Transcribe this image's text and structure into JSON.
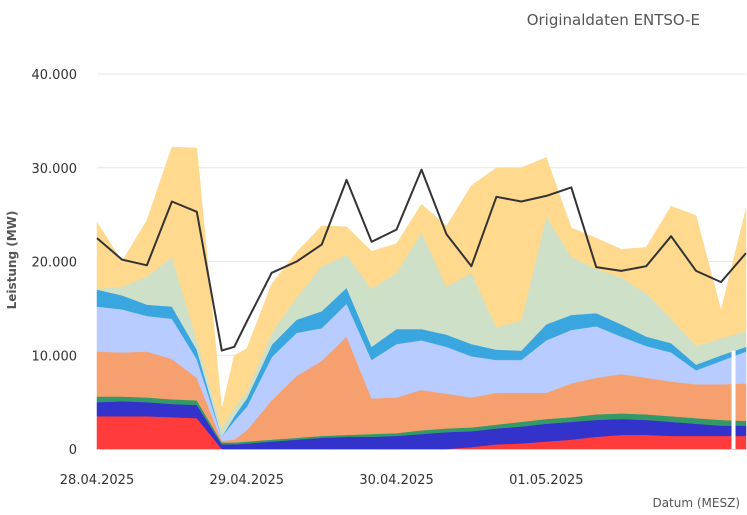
{
  "chart_data": {
    "type": "area",
    "title": "Originaldaten ENTSO-E",
    "ylabel": "Leistung (MW)",
    "xlabel": "Datum (MESZ)",
    "ylim": [
      0,
      40000
    ],
    "xlim": [
      0,
      104
    ],
    "y_ticks": [
      {
        "value": 0,
        "label": "0"
      },
      {
        "value": 10000,
        "label": "10.000"
      },
      {
        "value": 20000,
        "label": "20.000"
      },
      {
        "value": 30000,
        "label": "30.000"
      },
      {
        "value": 40000,
        "label": "40.000"
      }
    ],
    "x_ticks": [
      {
        "value": 0,
        "label": "28.04.2025"
      },
      {
        "value": 24,
        "label": "29.04.2025"
      },
      {
        "value": 48,
        "label": "30.04.2025"
      },
      {
        "value": 72,
        "label": "01.05.2025"
      }
    ],
    "grid": true,
    "x": [
      0,
      4,
      8,
      12,
      16,
      20,
      22,
      24,
      28,
      32,
      36,
      40,
      44,
      48,
      52,
      56,
      60,
      64,
      68,
      72,
      76,
      80,
      84,
      88,
      92,
      96,
      100,
      104
    ],
    "stacked_series": [
      {
        "color": "#ff3b3b",
        "values": [
          3500,
          3500,
          3500,
          3400,
          3300,
          0,
          0,
          0,
          0,
          0,
          0,
          0,
          0,
          0,
          0,
          0,
          200,
          500,
          600,
          800,
          1000,
          1300,
          1500,
          1500,
          1400,
          1400,
          1400,
          1400
        ]
      },
      {
        "color": "#3333cc",
        "values": [
          1500,
          1600,
          1500,
          1400,
          1400,
          500,
          500,
          600,
          800,
          1000,
          1200,
          1300,
          1300,
          1400,
          1600,
          1800,
          1700,
          1700,
          1800,
          1900,
          1900,
          1800,
          1700,
          1600,
          1500,
          1300,
          1100,
          1100
        ]
      },
      {
        "color": "#339966",
        "values": [
          600,
          500,
          500,
          500,
          500,
          200,
          200,
          200,
          200,
          200,
          200,
          200,
          300,
          300,
          400,
          400,
          400,
          400,
          500,
          500,
          500,
          600,
          600,
          600,
          600,
          600,
          600,
          500
        ]
      },
      {
        "color": "#f5a06e",
        "values": [
          4800,
          4700,
          4900,
          4300,
          2400,
          200,
          300,
          1200,
          4200,
          6600,
          8000,
          10500,
          3800,
          3800,
          4300,
          3700,
          3200,
          3400,
          3100,
          2800,
          3600,
          3900,
          4200,
          3900,
          3700,
          3600,
          3800,
          4000
        ]
      },
      {
        "color": "#b8ccff",
        "values": [
          4800,
          4600,
          3800,
          4300,
          2000,
          400,
          2000,
          2500,
          4600,
          4600,
          3500,
          3500,
          4100,
          5700,
          5300,
          5000,
          4400,
          3500,
          3500,
          5600,
          5700,
          5500,
          4000,
          3400,
          3100,
          1500,
          2500,
          3400
        ]
      },
      {
        "color": "#3aa6e0",
        "values": [
          1800,
          1500,
          1200,
          1300,
          1000,
          0,
          500,
          900,
          1300,
          1400,
          1800,
          1700,
          1400,
          1600,
          1200,
          1300,
          1300,
          1100,
          1000,
          1700,
          1600,
          1400,
          1300,
          1000,
          1000,
          600,
          600,
          500
        ]
      },
      {
        "color": "#cfe0c8",
        "values": [
          100,
          900,
          3000,
          5300,
          1000,
          900,
          900,
          700,
          1300,
          2400,
          4800,
          3500,
          6200,
          6000,
          10300,
          5100,
          7600,
          2400,
          3200,
          11500,
          6200,
          4700,
          5000,
          4600,
          2600,
          2000,
          1800,
          1700
        ]
      },
      {
        "color": "#fed98e",
        "values": [
          7100,
          2700,
          6000,
          11700,
          20500,
          2000,
          5600,
          4600,
          5200,
          4800,
          4300,
          3000,
          4000,
          3100,
          3000,
          6500,
          9300,
          17000,
          16300,
          6300,
          3100,
          3300,
          3000,
          4900,
          12000,
          13900,
          3000,
          13000
        ]
      }
    ],
    "line_series": {
      "color": "#333333",
      "values": [
        22500,
        20200,
        19600,
        26400,
        25300,
        10500,
        10900,
        13600,
        18800,
        20000,
        21800,
        28700,
        22100,
        23400,
        29800,
        22900,
        19500,
        26900,
        26400,
        27000,
        27900,
        19400,
        19000,
        19500,
        22700,
        19000,
        17800,
        20900
      ]
    },
    "gap_marker_x": 102
  }
}
